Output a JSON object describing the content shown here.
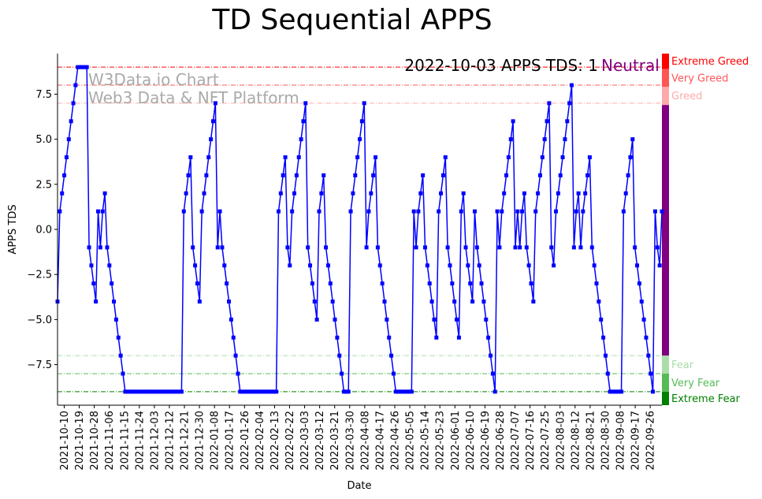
{
  "chart_data": {
    "type": "line",
    "title": "TD Sequential APPS",
    "xlabel": "Date",
    "ylabel": "APPS TDS",
    "ylim": [
      -9.75,
      9.75
    ],
    "ytick_values": [
      -7.5,
      -5.0,
      -2.5,
      0.0,
      2.5,
      5.0,
      7.5
    ],
    "ytick_labels": [
      "−7.5",
      "−5.0",
      "−2.5",
      "0.0",
      "2.5",
      "5.0",
      "7.5"
    ],
    "start_date": "2021-10-06",
    "end_date": "2022-10-03",
    "xtick_labels": [
      "2021-10-10",
      "2021-10-19",
      "2021-10-28",
      "2021-11-06",
      "2021-11-15",
      "2021-11-24",
      "2021-12-03",
      "2021-12-12",
      "2021-12-21",
      "2021-12-30",
      "2022-01-08",
      "2022-01-17",
      "2022-01-26",
      "2022-02-04",
      "2022-02-13",
      "2022-02-22",
      "2022-03-03",
      "2022-03-12",
      "2022-03-21",
      "2022-03-30",
      "2022-04-08",
      "2022-04-17",
      "2022-04-26",
      "2022-05-05",
      "2022-05-14",
      "2022-05-23",
      "2022-06-01",
      "2022-06-10",
      "2022-06-19",
      "2022-06-28",
      "2022-07-07",
      "2022-07-16",
      "2022-07-25",
      "2022-08-03",
      "2022-08-12",
      "2022-08-21",
      "2022-08-30",
      "2022-09-08",
      "2022-09-17",
      "2022-09-26"
    ],
    "series": [
      {
        "name": "APPS TDS",
        "color": "#0000ff",
        "values": [
          -4,
          1,
          2,
          3,
          4,
          5,
          6,
          7,
          8,
          9,
          9,
          9,
          9,
          9,
          -1,
          -2,
          -3,
          -4,
          1,
          -1,
          1,
          2,
          -1,
          -2,
          -3,
          -4,
          -5,
          -6,
          -7,
          -8,
          -9,
          -9,
          -9,
          -9,
          -9,
          -9,
          -9,
          -9,
          -9,
          -9,
          -9,
          -9,
          -9,
          -9,
          -9,
          -9,
          -9,
          -9,
          -9,
          -9,
          -9,
          -9,
          -9,
          -9,
          -9,
          -9,
          1,
          2,
          3,
          4,
          -1,
          -2,
          -3,
          -4,
          1,
          2,
          3,
          4,
          5,
          6,
          7,
          -1,
          1,
          -1,
          -2,
          -3,
          -4,
          -5,
          -6,
          -7,
          -8,
          -9,
          -9,
          -9,
          -9,
          -9,
          -9,
          -9,
          -9,
          -9,
          -9,
          -9,
          -9,
          -9,
          -9,
          -9,
          -9,
          -9,
          1,
          2,
          3,
          4,
          -1,
          -2,
          1,
          2,
          3,
          4,
          5,
          6,
          7,
          -1,
          -2,
          -3,
          -4,
          -5,
          1,
          2,
          3,
          -1,
          -2,
          -3,
          -4,
          -5,
          -6,
          -7,
          -8,
          -9,
          -9,
          -9,
          1,
          2,
          3,
          4,
          5,
          6,
          7,
          -1,
          1,
          2,
          3,
          4,
          -1,
          -2,
          -3,
          -4,
          -5,
          -6,
          -7,
          -8,
          -9,
          -9,
          -9,
          -9,
          -9,
          -9,
          -9,
          -9,
          1,
          -1,
          1,
          2,
          3,
          -1,
          -2,
          -3,
          -4,
          -5,
          -6,
          1,
          2,
          3,
          4,
          -1,
          -2,
          -3,
          -4,
          -5,
          -6,
          1,
          2,
          -1,
          -2,
          -3,
          -4,
          1,
          -1,
          -2,
          -3,
          -4,
          -5,
          -6,
          -7,
          -8,
          -9,
          1,
          -1,
          1,
          2,
          3,
          4,
          5,
          6,
          -1,
          1,
          -1,
          1,
          2,
          -1,
          -2,
          -3,
          -4,
          1,
          2,
          3,
          4,
          5,
          6,
          7,
          -1,
          -2,
          1,
          2,
          3,
          4,
          5,
          6,
          7,
          8,
          -1,
          1,
          2,
          -1,
          1,
          2,
          3,
          4,
          -1,
          -2,
          -3,
          -4,
          -5,
          -6,
          -7,
          -8,
          -9,
          -9,
          -9,
          -9,
          -9,
          -9,
          1,
          2,
          3,
          4,
          5,
          -1,
          -2,
          -3,
          -4,
          -5,
          -6,
          -7,
          -8,
          -9,
          1,
          -1,
          -2,
          1
        ]
      }
    ],
    "reference_lines": [
      {
        "value": 9,
        "color": "#ff0000",
        "style": "dashdot"
      },
      {
        "value": 8,
        "color": "#ff5555",
        "style": "dashdot"
      },
      {
        "value": 7,
        "color": "#ffaaaa",
        "style": "dashdot"
      },
      {
        "value": -7,
        "color": "#aaddaa",
        "style": "dashdot"
      },
      {
        "value": -8,
        "color": "#55bb55",
        "style": "dashdot"
      },
      {
        "value": -9,
        "color": "#008000",
        "style": "dashdot"
      }
    ],
    "zones": [
      {
        "label": "Extreme Greed",
        "from": 8.9,
        "to": 9.75,
        "color": "#ff0000"
      },
      {
        "label": "Very Greed",
        "from": 7.9,
        "to": 8.9,
        "color": "#ff5555"
      },
      {
        "label": "Greed",
        "from": 6.9,
        "to": 7.9,
        "color": "#ffaaaa"
      },
      {
        "label": "",
        "from": -7.0,
        "to": 6.9,
        "color": "#800080"
      },
      {
        "label": "Fear",
        "from": -8.0,
        "to": -7.0,
        "color": "#aaddaa"
      },
      {
        "label": "Very Fear",
        "from": -9.0,
        "to": -8.0,
        "color": "#55bb55"
      },
      {
        "label": "Extreme Fear",
        "from": -9.75,
        "to": -9.0,
        "color": "#008000"
      }
    ],
    "zone_label_colors": {
      "Extreme Greed": "#ff0000",
      "Very Greed": "#ff5555",
      "Greed": "#ffaaaa",
      "Fear": "#aaddaa",
      "Very Fear": "#55bb55",
      "Extreme Fear": "#008000"
    },
    "status": {
      "date_label": "2022-10-03 APPS TDS: 1",
      "sentiment": "Neutral",
      "sentiment_color": "#800080"
    },
    "watermark": [
      "W3Data.io Chart",
      "Web3 Data & NFT Platform"
    ]
  }
}
